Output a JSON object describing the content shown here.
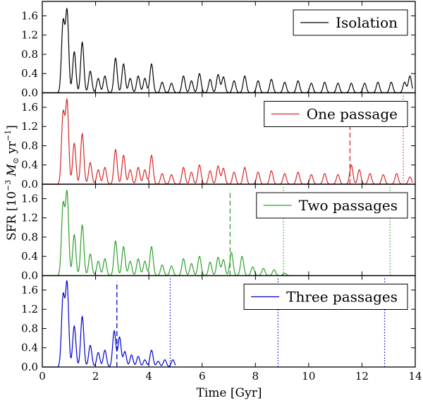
{
  "chart_data": {
    "type": "line",
    "xlabel": "Time [Gyr]",
    "ylabel": "SFR [10^-3 M☉ yr^-1]",
    "ylabel_parts": {
      "prefix": "SFR [10",
      "exp1": "−3",
      "unit_m": "M",
      "unit_sub": "⊙",
      "unit_yr": " yr",
      "exp2": "−1",
      "suffix": "]"
    },
    "xlim": [
      0,
      14
    ],
    "ylim": [
      0,
      1.9
    ],
    "x_ticks": [
      0,
      2,
      4,
      6,
      8,
      10,
      12,
      14
    ],
    "x_tick_labels": [
      "0",
      "2",
      "4",
      "6",
      "8",
      "10",
      "12",
      "14"
    ],
    "y_ticks": [
      0.0,
      0.4,
      0.8,
      1.2,
      1.6
    ],
    "y_tick_labels": [
      "0.0",
      "0.4",
      "0.8",
      "1.2",
      "1.6"
    ],
    "panels": [
      {
        "name": "Isolation",
        "legend": "Isolation",
        "color": "#000000",
        "t_end": 13.9,
        "peaks": [
          [
            0.78,
            1.45
          ],
          [
            0.93,
            1.68
          ],
          [
            1.2,
            0.85
          ],
          [
            1.5,
            1.05
          ],
          [
            1.8,
            0.45
          ],
          [
            2.1,
            0.3
          ],
          [
            2.35,
            0.35
          ],
          [
            2.75,
            0.72
          ],
          [
            3.05,
            0.6
          ],
          [
            3.3,
            0.3
          ],
          [
            3.6,
            0.35
          ],
          [
            3.85,
            0.3
          ],
          [
            4.1,
            0.6
          ],
          [
            4.5,
            0.22
          ],
          [
            4.85,
            0.2
          ],
          [
            5.3,
            0.35
          ],
          [
            5.6,
            0.25
          ],
          [
            5.9,
            0.4
          ],
          [
            6.3,
            0.28
          ],
          [
            6.6,
            0.38
          ],
          [
            6.8,
            0.33
          ],
          [
            7.2,
            0.25
          ],
          [
            7.6,
            0.35
          ],
          [
            8.1,
            0.25
          ],
          [
            8.6,
            0.28
          ],
          [
            9.1,
            0.22
          ],
          [
            9.6,
            0.25
          ],
          [
            10.1,
            0.2
          ],
          [
            10.6,
            0.22
          ],
          [
            11.1,
            0.2
          ],
          [
            11.6,
            0.2
          ],
          [
            12.1,
            0.2
          ],
          [
            12.6,
            0.22
          ],
          [
            13.1,
            0.22
          ],
          [
            13.6,
            0.22
          ],
          [
            13.8,
            0.35
          ]
        ],
        "dashed_lines": [],
        "dotted_lines": []
      },
      {
        "name": "One passage",
        "legend": "One passage",
        "color": "#d62728",
        "t_end": 13.9,
        "peaks": [
          [
            0.78,
            1.45
          ],
          [
            0.93,
            1.7
          ],
          [
            1.2,
            0.85
          ],
          [
            1.5,
            1.05
          ],
          [
            1.8,
            0.45
          ],
          [
            2.1,
            0.3
          ],
          [
            2.35,
            0.35
          ],
          [
            2.75,
            0.72
          ],
          [
            3.05,
            0.6
          ],
          [
            3.3,
            0.3
          ],
          [
            3.6,
            0.35
          ],
          [
            3.85,
            0.3
          ],
          [
            4.1,
            0.6
          ],
          [
            4.5,
            0.22
          ],
          [
            4.85,
            0.2
          ],
          [
            5.3,
            0.35
          ],
          [
            5.6,
            0.25
          ],
          [
            5.9,
            0.4
          ],
          [
            6.3,
            0.28
          ],
          [
            6.6,
            0.38
          ],
          [
            6.8,
            0.33
          ],
          [
            7.2,
            0.25
          ],
          [
            7.6,
            0.35
          ],
          [
            8.1,
            0.25
          ],
          [
            8.6,
            0.28
          ],
          [
            9.1,
            0.22
          ],
          [
            9.6,
            0.25
          ],
          [
            10.1,
            0.2
          ],
          [
            10.6,
            0.22
          ],
          [
            11.1,
            0.2
          ],
          [
            11.6,
            0.4
          ],
          [
            11.9,
            0.3
          ],
          [
            12.3,
            0.22
          ],
          [
            12.8,
            0.2
          ],
          [
            13.3,
            0.22
          ],
          [
            13.8,
            0.15
          ]
        ],
        "dashed_lines": [
          11.55
        ],
        "dotted_lines": [
          13.55
        ]
      },
      {
        "name": "Two passages",
        "legend": "Two passages",
        "color": "#2ca02c",
        "t_end": 9.4,
        "peaks": [
          [
            0.78,
            1.45
          ],
          [
            0.93,
            1.7
          ],
          [
            1.2,
            0.85
          ],
          [
            1.5,
            1.05
          ],
          [
            1.8,
            0.45
          ],
          [
            2.1,
            0.3
          ],
          [
            2.35,
            0.35
          ],
          [
            2.75,
            0.72
          ],
          [
            3.05,
            0.6
          ],
          [
            3.3,
            0.3
          ],
          [
            3.6,
            0.35
          ],
          [
            3.85,
            0.3
          ],
          [
            4.1,
            0.6
          ],
          [
            4.5,
            0.22
          ],
          [
            4.85,
            0.2
          ],
          [
            5.3,
            0.35
          ],
          [
            5.6,
            0.25
          ],
          [
            5.9,
            0.4
          ],
          [
            6.3,
            0.28
          ],
          [
            6.6,
            0.38
          ],
          [
            6.8,
            0.33
          ],
          [
            7.1,
            0.48
          ],
          [
            7.5,
            0.4
          ],
          [
            7.9,
            0.18
          ],
          [
            8.3,
            0.15
          ],
          [
            8.7,
            0.12
          ],
          [
            9.1,
            0.05
          ]
        ],
        "dashed_lines": [
          7.05
        ],
        "dotted_lines": [
          9.05,
          13.05
        ]
      },
      {
        "name": "Three passages",
        "legend": "Three passages",
        "color": "#0000cc",
        "t_end": 5.0,
        "peaks": [
          [
            0.78,
            1.45
          ],
          [
            0.93,
            1.72
          ],
          [
            1.2,
            0.85
          ],
          [
            1.5,
            1.05
          ],
          [
            1.8,
            0.45
          ],
          [
            2.1,
            0.3
          ],
          [
            2.35,
            0.35
          ],
          [
            2.7,
            0.75
          ],
          [
            2.9,
            0.62
          ],
          [
            3.1,
            0.32
          ],
          [
            3.35,
            0.25
          ],
          [
            3.6,
            0.22
          ],
          [
            3.85,
            0.15
          ],
          [
            4.1,
            0.35
          ],
          [
            4.35,
            0.12
          ],
          [
            4.6,
            0.15
          ],
          [
            4.9,
            0.15
          ]
        ],
        "dashed_lines": [
          2.8
        ],
        "dotted_lines": [
          4.8,
          8.85,
          12.85
        ]
      }
    ]
  }
}
